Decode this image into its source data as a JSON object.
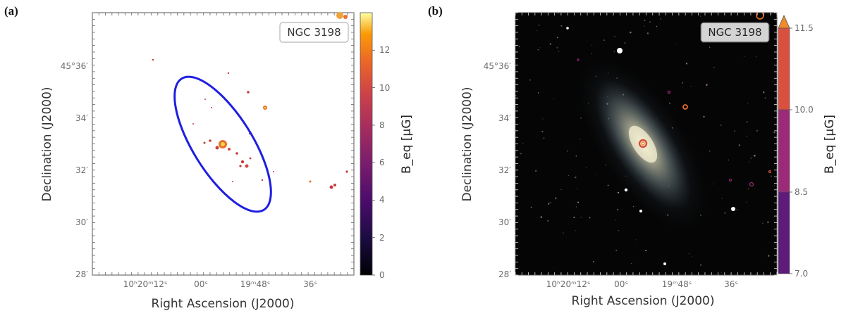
{
  "panels": [
    {
      "label": "(a)",
      "object_name": "NGC 3198",
      "xlabel": "Right Ascension (J2000)",
      "ylabel": "Declination (J2000)",
      "ra_ticks": [
        "10ʰ20ᵐ12ˢ",
        "00ˢ",
        "19ᵐ48ˢ",
        "36ˢ"
      ],
      "dec_ticks": [
        "45°36′",
        "34′",
        "32′",
        "30′",
        "28′"
      ],
      "colorbar": {
        "label": "B_eq [μG]",
        "ticks": [
          "0",
          "2",
          "4",
          "6",
          "8",
          "10",
          "12"
        ],
        "range": [
          0,
          14
        ],
        "colormap": "inferno"
      }
    },
    {
      "label": "(b)",
      "object_name": "NGC 3198",
      "xlabel": "Right Ascension (J2000)",
      "ylabel": "Declination (J2000)",
      "ra_ticks": [
        "10ʰ20ᵐ12ˢ",
        "00ˢ",
        "19ᵐ48ˢ",
        "36ˢ"
      ],
      "dec_ticks": [
        "45°36′",
        "34′",
        "32′",
        "30′",
        "28′"
      ],
      "colorbar": {
        "label": "B_eq [μG]",
        "ticks": [
          "7.0",
          "8.5",
          "10.0",
          "11.5"
        ],
        "bins": [
          {
            "from": 7.0,
            "to": 8.5,
            "color": "#5e1b7a"
          },
          {
            "from": 8.5,
            "to": 10.0,
            "color": "#9b2a78"
          },
          {
            "from": 10.0,
            "to": 11.5,
            "color": "#d9503f"
          }
        ],
        "extend_color": "#f08a2a"
      }
    }
  ]
}
